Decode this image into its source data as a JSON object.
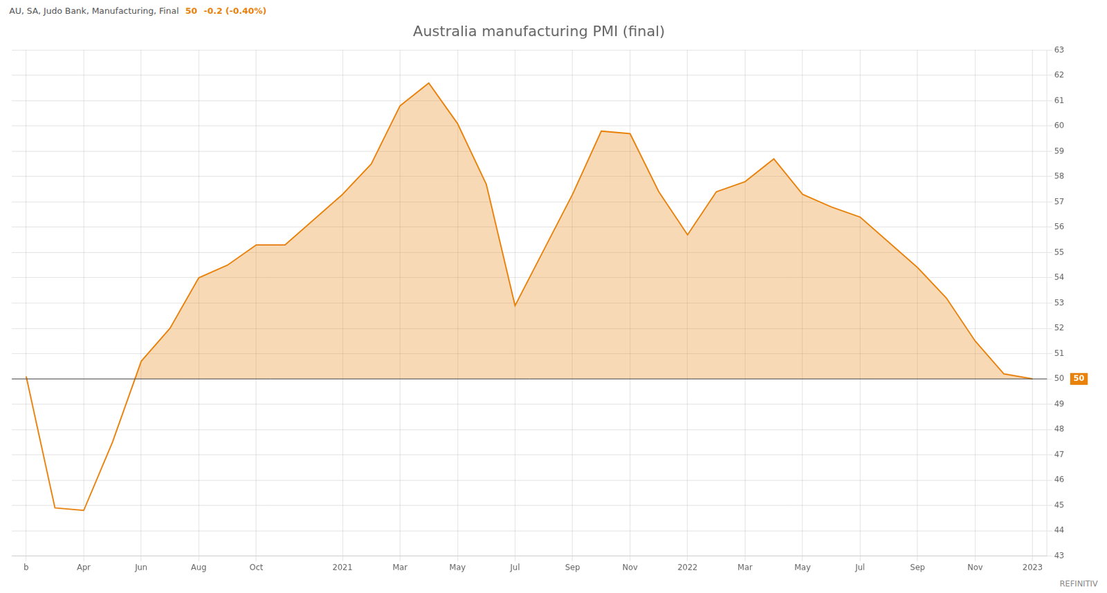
{
  "chart_data": {
    "type": "line",
    "title": "Australia manufacturing PMI (final)",
    "subtitle": [
      {
        "text": "AU, SA, Judo Bank, Manufacturing, Final"
      },
      {
        "text": "50",
        "color": "#e8820a"
      },
      {
        "text": "-0.2 (-0.40%)",
        "color": "#e8820a"
      }
    ],
    "categories": [
      "b",
      null,
      "Apr",
      null,
      "Jun",
      null,
      "Aug",
      null,
      "Oct",
      null,
      null,
      "2021",
      null,
      "Mar",
      null,
      "May",
      null,
      "Jul",
      null,
      "Sep",
      null,
      "Nov",
      null,
      "2022",
      null,
      "Mar",
      null,
      "May",
      null,
      "Jul",
      null,
      "Sep",
      null,
      "Nov",
      null,
      "2023"
    ],
    "series": [
      {
        "color": "#e8820a",
        "values": [
          50.1,
          44.9,
          44.8,
          47.5,
          50.7,
          52.0,
          54.0,
          54.5,
          55.3,
          55.3,
          56.3,
          57.3,
          58.5,
          60.8,
          61.7,
          60.1,
          57.7,
          52.9,
          55.1,
          57.3,
          59.8,
          59.7,
          57.4,
          55.7,
          57.4,
          57.8,
          58.7,
          57.3,
          56.8,
          56.4,
          55.4,
          54.4,
          53.2,
          51.5,
          50.2,
          50.0
        ]
      }
    ],
    "ylim": [
      43,
      63
    ],
    "yticks": [
      43,
      44,
      45,
      46,
      47,
      48,
      49,
      50,
      51,
      52,
      53,
      54,
      55,
      56,
      57,
      58,
      59,
      60,
      61,
      62,
      63
    ],
    "grid": true,
    "annotations": [
      {
        "y": 50,
        "label": "50",
        "color": "#e8820a"
      },
      {
        "text": "REFINITIV"
      }
    ]
  }
}
